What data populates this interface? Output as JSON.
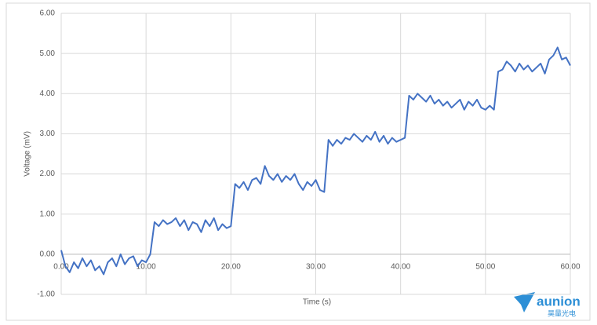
{
  "chart_data": {
    "type": "line",
    "x_label": "Time (s)",
    "y_label": "Voltage (mV)",
    "x": [
      0,
      0.5,
      1,
      1.5,
      2,
      2.5,
      3,
      3.5,
      4,
      4.5,
      5,
      5.5,
      6,
      6.5,
      7,
      7.5,
      8,
      8.5,
      9,
      9.5,
      10,
      10.5,
      11,
      11.5,
      12,
      12.5,
      13,
      13.5,
      14,
      14.5,
      15,
      15.5,
      16,
      16.5,
      17,
      17.5,
      18,
      18.5,
      19,
      19.5,
      20,
      20.5,
      21,
      21.5,
      22,
      22.5,
      23,
      23.5,
      24,
      24.5,
      25,
      25.5,
      26,
      26.5,
      27,
      27.5,
      28,
      28.5,
      29,
      29.5,
      30,
      30.5,
      31,
      31.5,
      32,
      32.5,
      33,
      33.5,
      34,
      34.5,
      35,
      35.5,
      36,
      36.5,
      37,
      37.5,
      38,
      38.5,
      39,
      39.5,
      40,
      40.5,
      41,
      41.5,
      42,
      42.5,
      43,
      43.5,
      44,
      44.5,
      45,
      45.5,
      46,
      46.5,
      47,
      47.5,
      48,
      48.5,
      49,
      49.5,
      50,
      50.5,
      51,
      51.5,
      52,
      52.5,
      53,
      53.5,
      54,
      54.5,
      55,
      55.5,
      56,
      56.5,
      57,
      57.5,
      58,
      58.5,
      59,
      59.5,
      60
    ],
    "series": [
      {
        "name": "Voltage",
        "color": "#4472c4",
        "values": [
          0.1,
          -0.3,
          -0.45,
          -0.2,
          -0.35,
          -0.1,
          -0.3,
          -0.15,
          -0.4,
          -0.3,
          -0.5,
          -0.2,
          -0.1,
          -0.3,
          0.0,
          -0.25,
          -0.1,
          -0.05,
          -0.3,
          -0.15,
          -0.2,
          0.0,
          0.8,
          0.7,
          0.85,
          0.75,
          0.8,
          0.9,
          0.7,
          0.85,
          0.6,
          0.8,
          0.75,
          0.55,
          0.85,
          0.7,
          0.9,
          0.6,
          0.75,
          0.65,
          0.7,
          1.75,
          1.65,
          1.8,
          1.6,
          1.85,
          1.9,
          1.75,
          2.2,
          1.95,
          1.85,
          2.0,
          1.8,
          1.95,
          1.85,
          2.0,
          1.75,
          1.6,
          1.8,
          1.7,
          1.85,
          1.6,
          1.55,
          2.85,
          2.7,
          2.85,
          2.75,
          2.9,
          2.85,
          3.0,
          2.9,
          2.8,
          2.95,
          2.85,
          3.05,
          2.8,
          2.95,
          2.75,
          2.9,
          2.8,
          2.85,
          2.9,
          3.95,
          3.85,
          4.0,
          3.9,
          3.8,
          3.95,
          3.75,
          3.85,
          3.7,
          3.8,
          3.65,
          3.75,
          3.85,
          3.6,
          3.8,
          3.7,
          3.85,
          3.65,
          3.6,
          3.7,
          3.6,
          4.55,
          4.6,
          4.8,
          4.7,
          4.55,
          4.75,
          4.6,
          4.7,
          4.55,
          4.65,
          4.75,
          4.5,
          4.85,
          4.95,
          5.15,
          4.85,
          4.9,
          4.7
        ]
      }
    ],
    "xlim": [
      0,
      60
    ],
    "xticks": [
      {
        "value": 0,
        "label": "0.00"
      },
      {
        "value": 10,
        "label": "10.00"
      },
      {
        "value": 20,
        "label": "20.00"
      },
      {
        "value": 30,
        "label": "30.00"
      },
      {
        "value": 40,
        "label": "40.00"
      },
      {
        "value": 50,
        "label": "50.00"
      },
      {
        "value": 60,
        "label": "60.00"
      }
    ],
    "ylim": [
      -1,
      6
    ],
    "yticks": [
      {
        "value": -1,
        "label": "-1.00"
      },
      {
        "value": 0,
        "label": "0.00"
      },
      {
        "value": 1,
        "label": "1.00"
      },
      {
        "value": 2,
        "label": "2.00"
      },
      {
        "value": 3,
        "label": "3.00"
      },
      {
        "value": 4,
        "label": "4.00"
      },
      {
        "value": 5,
        "label": "5.00"
      },
      {
        "value": 6,
        "label": "6.00"
      }
    ],
    "grid": true
  },
  "watermark": {
    "brand": "aunion",
    "subtitle": "昊量光电"
  }
}
